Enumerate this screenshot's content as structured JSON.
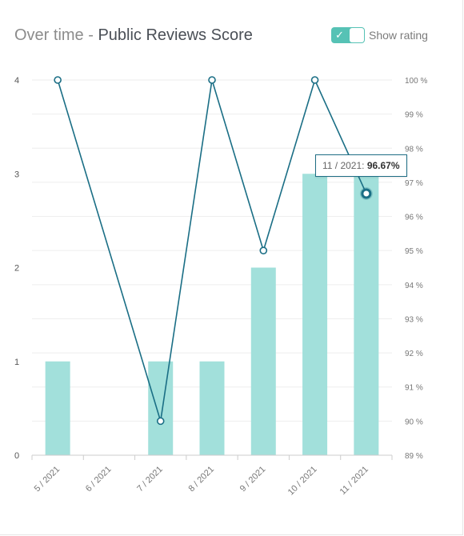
{
  "header": {
    "title_prefix": "Over time - ",
    "title_main": "Public Reviews Score"
  },
  "toggle": {
    "label": "Show rating",
    "checked": true,
    "check_icon": "checkmark-icon"
  },
  "tooltip": {
    "label": "11 / 2021: ",
    "value": "96.67%"
  },
  "colors": {
    "bar": "#a2e0db",
    "line": "#1a6e85",
    "grid": "#eeeeee",
    "toggle": "#56c2b5"
  },
  "chart_data": {
    "type": "bar+line",
    "categories": [
      "5 / 2021",
      "6 / 2021",
      "7 / 2021",
      "8 / 2021",
      "9 / 2021",
      "10 / 2021",
      "11 / 2021"
    ],
    "bars": {
      "values": [
        1,
        0,
        1,
        1,
        2,
        3,
        3
      ],
      "axis": "left"
    },
    "line": {
      "values": [
        100,
        null,
        90,
        100,
        95,
        100,
        96.67
      ],
      "axis": "right"
    },
    "left_axis": {
      "ylim": [
        0,
        4
      ],
      "ticks": [
        "0",
        "1",
        "2",
        "3",
        "4"
      ]
    },
    "right_axis": {
      "ylim": [
        89,
        100
      ],
      "ticks": [
        "89 %",
        "90 %",
        "91 %",
        "92 %",
        "93 %",
        "94 %",
        "95 %",
        "96 %",
        "97 %",
        "98 %",
        "99 %",
        "100 %"
      ]
    },
    "grid": true,
    "highlight_index": 6
  }
}
